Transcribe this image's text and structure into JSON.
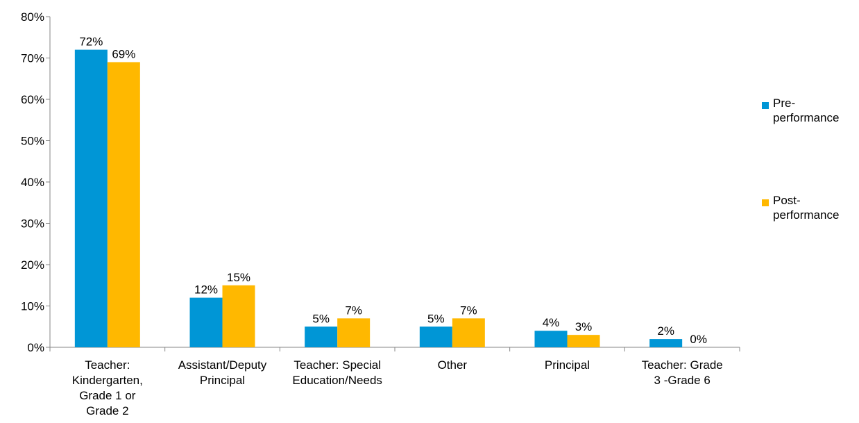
{
  "chart_data": {
    "type": "bar",
    "title": "",
    "xlabel": "",
    "ylabel": "",
    "ylim": [
      0,
      80
    ],
    "yticks": [
      "0%",
      "10%",
      "20%",
      "30%",
      "40%",
      "50%",
      "60%",
      "70%",
      "80%"
    ],
    "categories": [
      [
        "Teacher:",
        "Kindergarten,",
        "Grade 1 or",
        "Grade 2"
      ],
      [
        "Assistant/Deputy",
        "Principal"
      ],
      [
        "Teacher: Special",
        "Education/Needs"
      ],
      [
        "Other"
      ],
      [
        "Principal"
      ],
      [
        "Teacher: Grade",
        "3 -Grade 6"
      ]
    ],
    "series": [
      {
        "name": "Pre-performance",
        "legend_lines": [
          "Pre-",
          "performance"
        ],
        "color": "#0096d6",
        "values": [
          72,
          12,
          5,
          5,
          4,
          2
        ],
        "labels": [
          "72%",
          "12%",
          "5%",
          "5%",
          "4%",
          "2%"
        ]
      },
      {
        "name": "Post-performance",
        "legend_lines": [
          "Post-",
          "performance"
        ],
        "color": "#ffb800",
        "values": [
          69,
          15,
          7,
          7,
          3,
          0
        ],
        "labels": [
          "69%",
          "15%",
          "7%",
          "7%",
          "3%",
          "0%"
        ]
      }
    ],
    "legend_position": "right",
    "grid": false
  }
}
